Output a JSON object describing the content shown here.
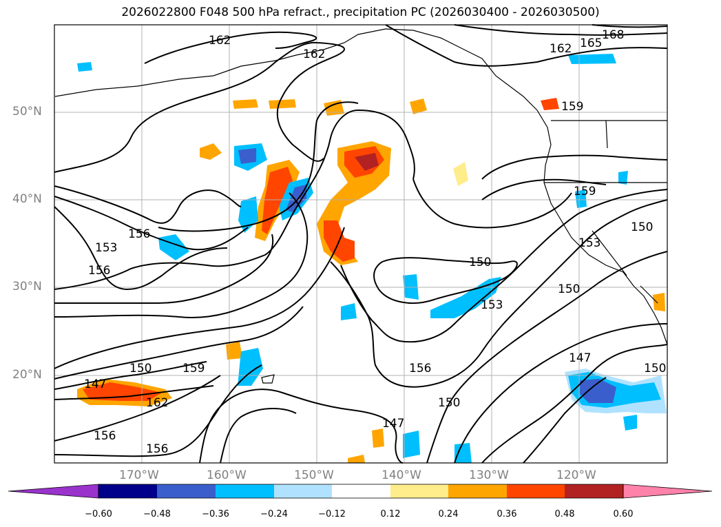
{
  "title": "2026022800 F048 500 hPa refract., precipitation PC (2026030400 - 2026030500)",
  "latitude_labels": [
    "50°N",
    "40°N",
    "30°N",
    "20°N"
  ],
  "longitude_labels": [
    "170°W",
    "160°W",
    "150°W",
    "140°W",
    "130°W",
    "120°W"
  ],
  "contour_labels": [
    "162",
    "162",
    "168",
    "165",
    "162",
    "159",
    "159",
    "150",
    "153",
    "156",
    "153",
    "156",
    "150",
    "153",
    "150",
    "147",
    "150",
    "159",
    "162",
    "156",
    "156",
    "147",
    "150",
    "147",
    "150",
    "156"
  ],
  "colorbar": {
    "ticks": [
      "−0.60",
      "−0.48",
      "−0.36",
      "−0.24",
      "−0.12",
      "0.12",
      "0.24",
      "0.36",
      "0.48",
      "0.60"
    ],
    "colors": [
      "#9933cc",
      "#00008b",
      "#3a5fcd",
      "#00bfff",
      "#b0e2ff",
      "#ffffff",
      "#ffec8b",
      "#ffa500",
      "#ff4500",
      "#b22222",
      "#ff82ab"
    ]
  }
}
